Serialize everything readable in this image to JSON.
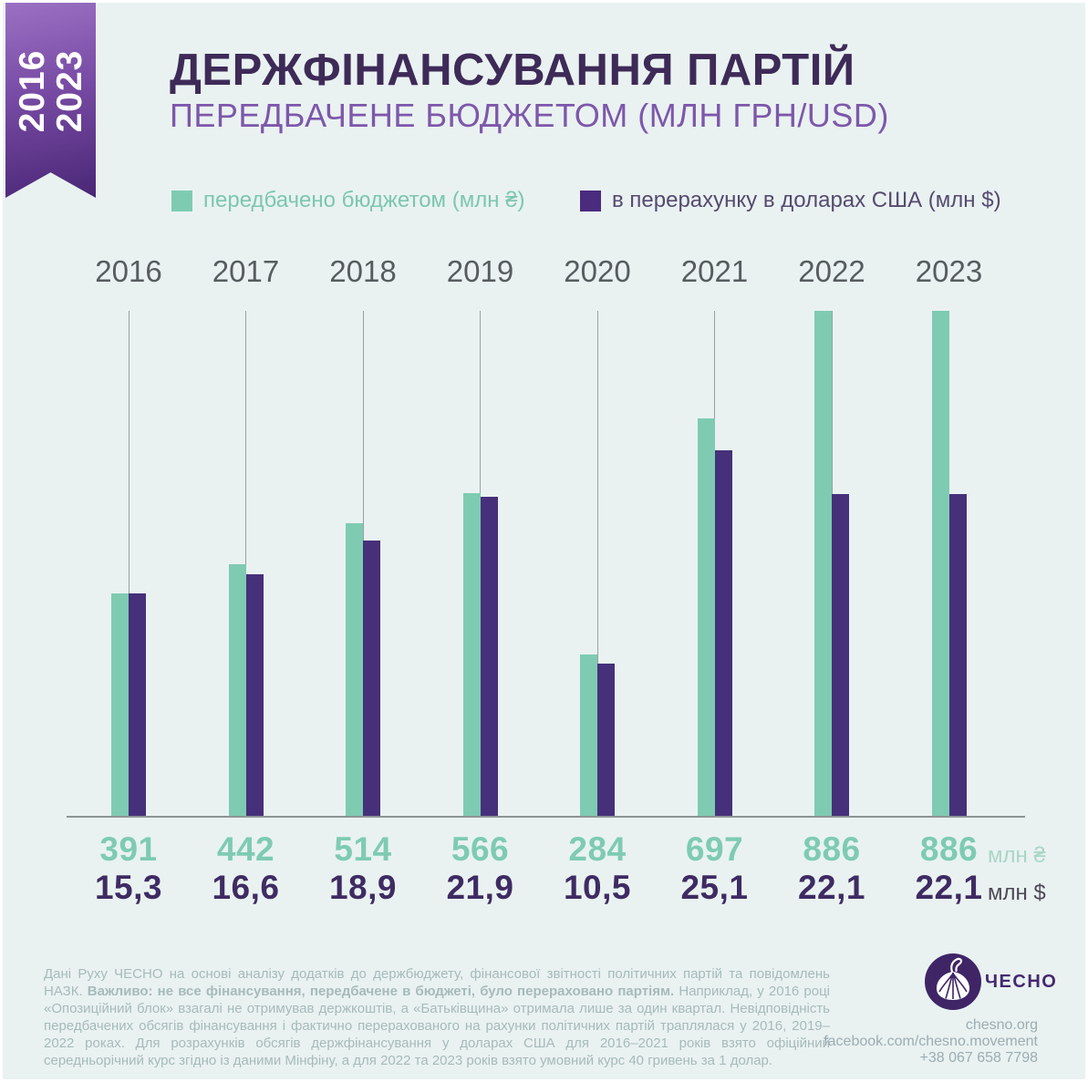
{
  "ribbon": {
    "line1": "2016",
    "line2": "2023"
  },
  "header": {
    "title": "ДЕРЖФІНАНСУВАННЯ ПАРТІЙ",
    "subtitle": "ПЕРЕДБАЧЕНЕ БЮДЖЕТОМ (МЛН ГРН/USD)"
  },
  "legend": {
    "items": [
      {
        "label": "передбачено бюджетом (млн ₴)",
        "color": "#7ecbb2"
      },
      {
        "label": "в перерахунку в доларах США (млн $)",
        "color": "#4a2b7e"
      }
    ]
  },
  "chart_data": {
    "type": "bar",
    "title": "Держфінансування партій, передбачене бюджетом (млн грн/USD), 2016–2023",
    "categories": [
      "2016",
      "2017",
      "2018",
      "2019",
      "2020",
      "2021",
      "2022",
      "2023"
    ],
    "series": [
      {
        "name": "передбачено бюджетом (млн ₴)",
        "unit": "млн ₴",
        "color": "#7ecbb2",
        "values": [
          391,
          442,
          514,
          566,
          284,
          697,
          886,
          886
        ],
        "labels": [
          "391",
          "442",
          "514",
          "566",
          "284",
          "697",
          "886",
          "886"
        ]
      },
      {
        "name": "в перерахунку в доларах США (млн $)",
        "unit": "млн $",
        "color": "#46307a",
        "values": [
          15.3,
          16.6,
          18.9,
          21.9,
          10.5,
          25.1,
          22.1,
          22.1
        ],
        "labels": [
          "15,3",
          "16,6",
          "18,9",
          "21,9",
          "10,5",
          "25,1",
          "22,1",
          "22,1"
        ]
      }
    ],
    "legend_position": "top",
    "grid": false,
    "y_axis_visible": false,
    "value_labels_position": "below baseline",
    "scale_note": "each series uses its own vertical scale; the two 2016 bars are drawn equal height and 886 млн ₴ spans full plot height"
  },
  "footnote": {
    "part1": "Дані Руху ЧЕСНО на основі аналізу додатків до держбюджету, фінансової звітності політичних партій та повідомлень НАЗК. ",
    "bold": "Важливо: не все фінансування, передбачене в бюджеті, було перераховано партіям.",
    "part2": " Наприклад, у 2016 році «Опозиційний блок» взагалі не отримував держкоштів, а «Батьківщина» отримала лише за один квартал. Невідповідність передбачених обсягів фінансування і фактично перерахованого на рахунки політичних партій траплялася у 2016, 2019–2022 роках. Для розрахунків обсягів держфінансування у доларах США для 2016–2021 років взято офіційний середньорічний курс згідно із даними Мінфіну, а для 2022 та 2023 років взято умовний курс 40 гривень за 1 долар."
  },
  "brand": {
    "wordmark": "ЧЕСНО",
    "website": "chesno.org",
    "facebook": "facebook.com/chesno.movement",
    "phone": "+38 067 658 7798"
  },
  "colors": {
    "background": "#e9f2f1",
    "title": "#3e2a57",
    "subtitle": "#7e57ab",
    "budget_green": "#7ecbb2",
    "usd_purple": "#46307a",
    "usd_value_text": "#3f2b63",
    "year_label": "#575c5f",
    "baseline": "#8d9494",
    "ribbon_top": "#9b71c4",
    "ribbon_bottom": "#4a2676",
    "logo_circle": "#3f2566"
  }
}
